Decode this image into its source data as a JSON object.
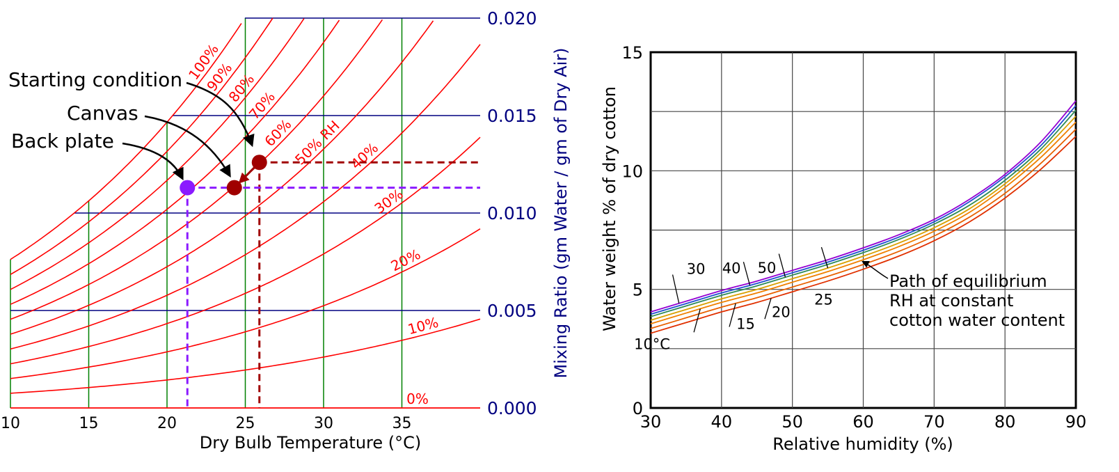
{
  "chart_data": [
    {
      "type": "line",
      "subtype": "psychrometric",
      "title": "",
      "xlabel": "Dry Bulb Temperature (°C)",
      "ylabel": "Mixing Ratio (gm Water / gm of Dry Air)",
      "xlim": [
        10,
        40
      ],
      "ylim": [
        0,
        0.02
      ],
      "xticks": [
        10,
        15,
        20,
        25,
        30,
        35
      ],
      "xtick_labels": [
        "10",
        "15",
        "20",
        "25",
        "30",
        "35"
      ],
      "yticks": [
        0,
        0.005,
        0.01,
        0.015,
        0.02
      ],
      "ytick_labels": [
        "0.000",
        "0.005",
        "0.010",
        "0.015",
        "0.020"
      ],
      "ylabel_side": "right",
      "grid": true,
      "rh_curves": [
        0,
        10,
        20,
        30,
        40,
        50,
        60,
        70,
        80,
        90,
        100
      ],
      "rh_labels": [
        "0%",
        "10%",
        "20%",
        "30%",
        "40%",
        "50% RH",
        "60%",
        "70%",
        "80%",
        "90%",
        "100%"
      ],
      "points": [
        {
          "name": "Starting condition",
          "x": 25.9,
          "y": 0.0126,
          "color": "#a00000"
        },
        {
          "name": "Canvas",
          "x": 24.3,
          "y": 0.0113,
          "color": "#a00000"
        },
        {
          "name": "Back plate",
          "x": 21.3,
          "y": 0.0113,
          "color": "#8b1aff"
        }
      ],
      "annotations": [
        "Starting condition",
        "Canvas",
        "Back plate"
      ],
      "colors": {
        "rh": "#ff0000",
        "temp_grid": "#008000",
        "mix_grid": "#000080",
        "path_start": "#a00000",
        "path_back": "#8b1aff",
        "axis_text": "#000080"
      }
    },
    {
      "type": "line",
      "title": "",
      "xlabel": "Relative humidity (%)",
      "ylabel": "Water weight % of dry cotton",
      "xlim": [
        30,
        90
      ],
      "ylim": [
        0,
        15
      ],
      "xticks": [
        30,
        40,
        50,
        60,
        70,
        80,
        90
      ],
      "xtick_labels": [
        "30",
        "40",
        "50",
        "60",
        "70",
        "80",
        "90"
      ],
      "yticks": [
        0,
        5,
        10,
        15
      ],
      "ytick_labels": [
        "0",
        "5",
        "10",
        "15"
      ],
      "grid": true,
      "x": [
        30,
        35,
        40,
        45,
        50,
        55,
        60,
        65,
        70,
        75,
        80,
        85,
        90
      ],
      "series": [
        {
          "name": "10°C",
          "color": "#9400d3",
          "values": [
            4.05,
            4.5,
            4.95,
            5.35,
            5.8,
            6.25,
            6.75,
            7.3,
            7.95,
            8.8,
            9.85,
            11.2,
            12.95
          ]
        },
        {
          "name": "15",
          "color": "#1f4fd0",
          "values": [
            3.95,
            4.4,
            4.85,
            5.25,
            5.7,
            6.15,
            6.65,
            7.2,
            7.85,
            8.7,
            9.75,
            11.05,
            12.75
          ]
        },
        {
          "name": "20",
          "color": "#2e8b57",
          "values": [
            3.85,
            4.3,
            4.75,
            5.15,
            5.6,
            6.05,
            6.55,
            7.1,
            7.75,
            8.55,
            9.6,
            10.9,
            12.55
          ]
        },
        {
          "name": "25",
          "color": "#d8a000",
          "values": [
            3.7,
            4.15,
            4.6,
            5.0,
            5.45,
            5.9,
            6.4,
            6.95,
            7.6,
            8.4,
            9.45,
            10.75,
            12.3
          ]
        },
        {
          "name": "30",
          "color": "#f08000",
          "values": [
            3.55,
            4.0,
            4.45,
            4.85,
            5.3,
            5.75,
            6.25,
            6.8,
            7.45,
            8.25,
            9.3,
            10.55,
            12.05
          ]
        },
        {
          "name": "40",
          "color": "#e86000",
          "values": [
            3.35,
            3.8,
            4.25,
            4.65,
            5.1,
            5.55,
            6.05,
            6.6,
            7.25,
            8.05,
            9.05,
            10.3,
            11.75
          ]
        },
        {
          "name": "50",
          "color": "#e03000",
          "values": [
            3.15,
            3.6,
            4.05,
            4.45,
            4.9,
            5.35,
            5.85,
            6.4,
            7.05,
            7.85,
            8.85,
            10.05,
            11.45
          ]
        }
      ],
      "annotations": [
        "10°C",
        "15",
        "20",
        "25",
        "30",
        "40",
        "50",
        "Path of equilibrium",
        "RH at constant",
        "cotton water content"
      ]
    }
  ]
}
